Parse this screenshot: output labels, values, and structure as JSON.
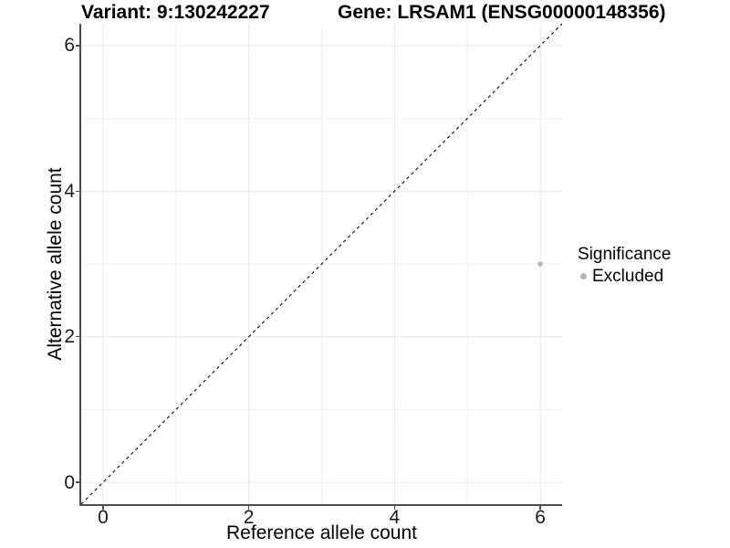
{
  "titles": {
    "variant": "Variant: 9:130242227",
    "gene": "Gene: LRSAM1 (ENSG00000148356)"
  },
  "chart_data": {
    "type": "scatter",
    "xlabel": "Reference allele count",
    "ylabel": "Alternative allele count",
    "xlim": [
      -0.3,
      6.3
    ],
    "ylim": [
      -0.3,
      6.3
    ],
    "x_ticks": [
      0,
      2,
      4,
      6
    ],
    "y_ticks": [
      0,
      2,
      4,
      6
    ],
    "x_minor_ticks": [
      1,
      3,
      5
    ],
    "y_minor_ticks": [
      1,
      3,
      5
    ],
    "grid": true,
    "points": [
      {
        "x": 6,
        "y": 3,
        "series": "Excluded"
      }
    ],
    "abline": {
      "slope": 1,
      "intercept": 0,
      "style": "dashed"
    },
    "legend": {
      "title": "Significance",
      "position": "right",
      "items": [
        {
          "label": "Excluded",
          "color": "#b5b5b5"
        }
      ]
    }
  },
  "colors": {
    "point_excluded": "#b5b5b5",
    "axis_line": "#4e4e4e",
    "grid_major": "#e6e6e6",
    "grid_minor": "#f2f2f2",
    "dash_line": "#1a1a1a",
    "tick_text": "#1a1a1a"
  }
}
